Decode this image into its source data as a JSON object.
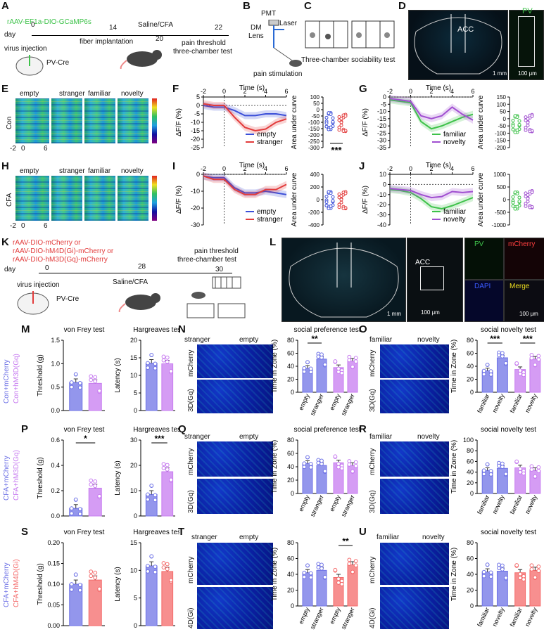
{
  "panels": [
    "A",
    "B",
    "C",
    "D",
    "E",
    "F",
    "G",
    "H",
    "I",
    "J",
    "K",
    "L",
    "M",
    "N",
    "O",
    "P",
    "Q",
    "R",
    "S",
    "T",
    "U"
  ],
  "panel_a": {
    "virus": "rAAV-EF1a-DIO-GCaMP6s",
    "day_label": "day",
    "ticks": [
      "0",
      "14",
      "20",
      "22"
    ],
    "events": [
      "virus injection",
      "fiber implantation",
      "Saline/CFA",
      "pain threshold",
      "three-chamber test"
    ],
    "mouse_line": "PV-Cre"
  },
  "panel_b": {
    "labels": [
      "PMT",
      "DM",
      "Laser",
      "Lens",
      "pain stimulation"
    ]
  },
  "panel_c": {
    "caption": "Three-chamber sociability test"
  },
  "panel_d": {
    "region": "ACC",
    "marker": "PV",
    "scale_left": "1 mm",
    "scale_right": "100 μm"
  },
  "panel_e": {
    "columns": [
      "empty",
      "stranger",
      "familiar",
      "novelty"
    ],
    "row_label": "Con",
    "x_ticks": [
      "-2",
      "0",
      "6"
    ]
  },
  "panel_h": {
    "columns": [
      "empty",
      "stranger",
      "familiar",
      "novelty"
    ],
    "row_label": "CFA",
    "x_ticks": [
      "-2",
      "0",
      "6"
    ]
  },
  "trace_common": {
    "x_label": "Time (s)",
    "x_ticks": [
      "-2",
      "0",
      "2",
      "4",
      "6"
    ],
    "y_label": "ΔF/F (%)",
    "auc_label": "Area under curve"
  },
  "panel_f": {
    "y_ticks": [
      "5",
      "0",
      "-5",
      "-10",
      "-15",
      "-20",
      "-25"
    ],
    "legend": [
      "empty",
      "stranger"
    ],
    "auc_ticks": [
      "100",
      "50",
      "0",
      "-50",
      "-100",
      "-150",
      "-200",
      "-250",
      "-300"
    ],
    "sig": "***"
  },
  "panel_g": {
    "y_ticks": [
      "0",
      "-5",
      "-10",
      "-15",
      "-20",
      "-25",
      "-30",
      "-35"
    ],
    "legend": [
      "familiar",
      "novelty"
    ],
    "auc_ticks": [
      "150",
      "100",
      "50",
      "0",
      "-50",
      "-100",
      "-150",
      "-200"
    ]
  },
  "panel_i": {
    "y_ticks": [
      "0",
      "-10",
      "-20",
      "-30"
    ],
    "legend": [
      "empty",
      "stranger"
    ],
    "auc_ticks": [
      "400",
      "200",
      "0",
      "-200",
      "-400"
    ]
  },
  "panel_j": {
    "y_ticks": [
      "10",
      "0",
      "-10",
      "-20",
      "-30",
      "-40"
    ],
    "legend": [
      "familiar",
      "novelty"
    ],
    "auc_ticks": [
      "1000",
      "500",
      "0",
      "-500",
      "-1000"
    ]
  },
  "panel_k": {
    "virus_lines": [
      "rAAV-DIO-mCherry or",
      "rAAV-DIO-hM4D(Gi)-mCherry or",
      "rAAV-DIO-hM3D(Gq)-mCherry"
    ],
    "day_label": "day",
    "ticks": [
      "0",
      "28",
      "30"
    ],
    "events": [
      "virus injection",
      "Saline/CFA",
      "pain threshold",
      "three-chamber test"
    ],
    "mouse_line": "PV-Cre"
  },
  "panel_l": {
    "region": "ACC",
    "channels": [
      "PV",
      "mCherry",
      "DAPI",
      "Merge"
    ],
    "scale_left": "1 mm",
    "scale_mid": "100 μm",
    "scale_right": "100 μm"
  },
  "groups": {
    "m": [
      "Con+mCherry",
      "Con+hM3D(Gq)"
    ],
    "p": [
      "CFA+mCherry",
      "CFA+hM3D(Gq)"
    ],
    "s": [
      "CFA+mCherry",
      "CFA+hM4D(Gi)"
    ]
  },
  "behavior_titles": {
    "vonfrey": "von Frey test",
    "hargreaves": "Hargreaves test",
    "pref": "social preference test",
    "novelty": "social novelty test"
  },
  "axes": {
    "threshold": "Threshold (g)",
    "latency": "Latency (s)",
    "zone": "Time in Zone (%)"
  },
  "track_labels": {
    "pref_cols": [
      "stranger",
      "empty"
    ],
    "nov_cols": [
      "familiar",
      "novelty"
    ],
    "rows_gq": [
      "mCherry",
      "3D(Gq)"
    ],
    "rows_gi": [
      "mCherry",
      "4D(Gi)"
    ]
  },
  "pref_x": [
    "empty",
    "stranger",
    "empty",
    "stranger"
  ],
  "nov_x": [
    "familiar",
    "novelty",
    "familiar",
    "novelty"
  ],
  "colors": {
    "ctrl": "#6f73e6",
    "gq": "#c77bf0",
    "gi": "#f46a6a",
    "green": "#3ec24a",
    "red": "#e23b3b"
  },
  "chart_data": [
    {
      "type": "bar",
      "id": "M-vonfrey",
      "title": "von Frey test",
      "ylabel": "Threshold (g)",
      "ylim": [
        0,
        1.5
      ],
      "y_ticks": [
        "0.0",
        "0.5",
        "1.0",
        "1.5"
      ],
      "categories": [
        "Con+mCherry",
        "Con+hM3D(Gq)"
      ],
      "values": [
        0.6,
        0.58
      ],
      "sig": ""
    },
    {
      "type": "bar",
      "id": "M-hargreaves",
      "title": "Hargreaves test",
      "ylabel": "Latency (s)",
      "ylim": [
        0,
        20
      ],
      "y_ticks": [
        "0",
        "5",
        "10",
        "15",
        "20"
      ],
      "categories": [
        "Con+mCherry",
        "Con+hM3D(Gq)"
      ],
      "values": [
        13.5,
        13.3
      ],
      "sig": ""
    },
    {
      "type": "bar",
      "id": "N",
      "title": "social preference test",
      "ylabel": "Time in Zone (%)",
      "ylim": [
        0,
        80
      ],
      "y_ticks": [
        "0",
        "20",
        "40",
        "60",
        "80"
      ],
      "categories": [
        "empty",
        "stranger",
        "empty",
        "stranger"
      ],
      "values": [
        37,
        51,
        38,
        48
      ],
      "sig": "**"
    },
    {
      "type": "bar",
      "id": "O",
      "title": "social novelty test",
      "ylabel": "Time in Zone (%)",
      "ylim": [
        0,
        80
      ],
      "y_ticks": [
        "0",
        "20",
        "40",
        "60",
        "80"
      ],
      "categories": [
        "familiar",
        "novelty",
        "familiar",
        "novelty"
      ],
      "values": [
        33,
        53,
        35,
        51
      ],
      "sig": "*** ***"
    },
    {
      "type": "bar",
      "id": "P-vonfrey",
      "title": "von Frey test",
      "ylabel": "Threshold (g)",
      "ylim": [
        0,
        0.6
      ],
      "y_ticks": [
        "0.0",
        "0.2",
        "0.4",
        "0.6"
      ],
      "categories": [
        "CFA+mCherry",
        "CFA+hM3D(Gq)"
      ],
      "values": [
        0.06,
        0.22
      ],
      "sig": "*"
    },
    {
      "type": "bar",
      "id": "P-hargreaves",
      "title": "Hargreaves test",
      "ylabel": "Latency (s)",
      "ylim": [
        0,
        30
      ],
      "y_ticks": [
        "0",
        "10",
        "20",
        "30"
      ],
      "categories": [
        "CFA+mCherry",
        "CFA+hM3D(Gq)"
      ],
      "values": [
        8.5,
        17.5
      ],
      "sig": "***"
    },
    {
      "type": "bar",
      "id": "Q",
      "title": "social preference test",
      "ylabel": "Time in Zone (%)",
      "ylim": [
        0,
        80
      ],
      "y_ticks": [
        "0",
        "20",
        "40",
        "60",
        "80"
      ],
      "categories": [
        "empty",
        "stranger",
        "empty",
        "stranger"
      ],
      "values": [
        45,
        42,
        46,
        42
      ],
      "sig": ""
    },
    {
      "type": "bar",
      "id": "R",
      "title": "social novelty test",
      "ylabel": "Time in Zone (%)",
      "ylim": [
        0,
        100
      ],
      "y_ticks": [
        "0",
        "20",
        "40",
        "60",
        "80",
        "100"
      ],
      "categories": [
        "familiar",
        "novelty",
        "familiar",
        "novelty"
      ],
      "values": [
        43,
        47,
        48,
        43
      ],
      "sig": ""
    },
    {
      "type": "bar",
      "id": "S-vonfrey",
      "title": "von Frey test",
      "ylabel": "Threshold (g)",
      "ylim": [
        0,
        0.2
      ],
      "y_ticks": [
        "0.00",
        "0.05",
        "0.10",
        "0.15",
        "0.20"
      ],
      "categories": [
        "CFA+mCherry",
        "CFA+hM4D(Gi)"
      ],
      "values": [
        0.1,
        0.11
      ],
      "sig": ""
    },
    {
      "type": "bar",
      "id": "S-hargreaves",
      "title": "Hargreaves test",
      "ylabel": "Latency (s)",
      "ylim": [
        0,
        15
      ],
      "y_ticks": [
        "0",
        "5",
        "10",
        "15"
      ],
      "categories": [
        "CFA+mCherry",
        "CFA+hM4D(Gi)"
      ],
      "values": [
        10.8,
        9.8
      ],
      "sig": ""
    },
    {
      "type": "bar",
      "id": "T",
      "title": "social preference test",
      "ylabel": "Time in Zone (%)",
      "ylim": [
        0,
        80
      ],
      "y_ticks": [
        "0",
        "20",
        "40",
        "60",
        "80"
      ],
      "categories": [
        "empty",
        "stranger",
        "empty",
        "stranger"
      ],
      "values": [
        42,
        45,
        36,
        52
      ],
      "sig": "**"
    },
    {
      "type": "bar",
      "id": "U",
      "title": "social novelty test",
      "ylabel": "Time in Zone (%)",
      "ylim": [
        0,
        80
      ],
      "y_ticks": [
        "0",
        "20",
        "40",
        "60",
        "80"
      ],
      "categories": [
        "familiar",
        "novelty",
        "familiar",
        "novelty"
      ],
      "values": [
        43,
        44,
        42,
        45
      ],
      "sig": ""
    },
    {
      "type": "line",
      "id": "F-trace",
      "x": [
        -2,
        -1,
        0,
        1,
        2,
        3,
        4,
        5,
        6
      ],
      "series": [
        {
          "name": "empty",
          "values": [
            0,
            -1,
            -1,
            -3,
            -6,
            -6,
            -5,
            -5,
            -6
          ]
        },
        {
          "name": "stranger",
          "values": [
            1,
            0,
            0,
            -7,
            -13,
            -15,
            -14,
            -10,
            -8
          ]
        }
      ],
      "ylim": [
        -25,
        5
      ]
    },
    {
      "type": "line",
      "id": "G-trace",
      "x": [
        -2,
        -1,
        0,
        1,
        2,
        3,
        4,
        5,
        6
      ],
      "series": [
        {
          "name": "familiar",
          "values": [
            -2,
            -3,
            -4,
            -17,
            -22,
            -20,
            -17,
            -14,
            -12
          ]
        },
        {
          "name": "novelty",
          "values": [
            -1,
            -2,
            -3,
            -13,
            -15,
            -13,
            -7,
            -12,
            -16
          ]
        }
      ],
      "ylim": [
        -35,
        0
      ]
    },
    {
      "type": "line",
      "id": "I-trace",
      "x": [
        -2,
        -1,
        0,
        1,
        2,
        3,
        4,
        5,
        6
      ],
      "series": [
        {
          "name": "empty",
          "values": [
            -1,
            -2,
            -2,
            -8,
            -11,
            -11,
            -10,
            -11,
            -12
          ]
        },
        {
          "name": "stranger",
          "values": [
            -1,
            -3,
            -3,
            -9,
            -12,
            -12,
            -9,
            -9,
            -6
          ]
        }
      ],
      "ylim": [
        -30,
        0
      ]
    },
    {
      "type": "line",
      "id": "J-trace",
      "x": [
        -2,
        -1,
        0,
        1,
        2,
        3,
        4,
        5,
        6
      ],
      "series": [
        {
          "name": "familiar",
          "values": [
            -5,
            -6,
            -8,
            -14,
            -22,
            -24,
            -21,
            -17,
            -13
          ]
        },
        {
          "name": "novelty",
          "values": [
            -4,
            -5,
            -6,
            -10,
            -13,
            -12,
            -7,
            -8,
            -7
          ]
        }
      ],
      "ylim": [
        -40,
        10
      ]
    }
  ]
}
